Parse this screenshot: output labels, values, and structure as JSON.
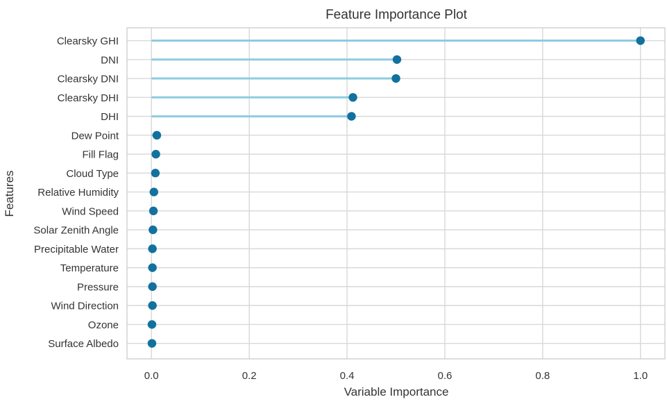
{
  "chart_data": {
    "type": "lollipop",
    "title": "Feature Importance Plot",
    "xlabel": "Variable Importance",
    "ylabel": "Features",
    "xlim": [
      -0.05,
      1.05
    ],
    "xticks": [
      "0.0",
      "0.2",
      "0.4",
      "0.6",
      "0.8",
      "1.0"
    ],
    "grid": true,
    "categories": [
      "Clearsky GHI",
      "DNI",
      "Clearsky DNI",
      "Clearsky DHI",
      "DHI",
      "Dew Point",
      "Fill Flag",
      "Cloud Type",
      "Relative Humidity",
      "Wind Speed",
      "Solar Zenith Angle",
      "Precipitable Water",
      "Temperature",
      "Pressure",
      "Wind Direction",
      "Ozone",
      "Surface Albedo"
    ],
    "values": [
      1.0,
      0.502,
      0.5,
      0.412,
      0.409,
      0.011,
      0.009,
      0.008,
      0.005,
      0.004,
      0.003,
      0.002,
      0.002,
      0.002,
      0.002,
      0.001,
      0.001
    ],
    "colors": {
      "stem": "#8ecbe2",
      "marker": "#12719e",
      "grid": "#d8d8d8"
    }
  }
}
